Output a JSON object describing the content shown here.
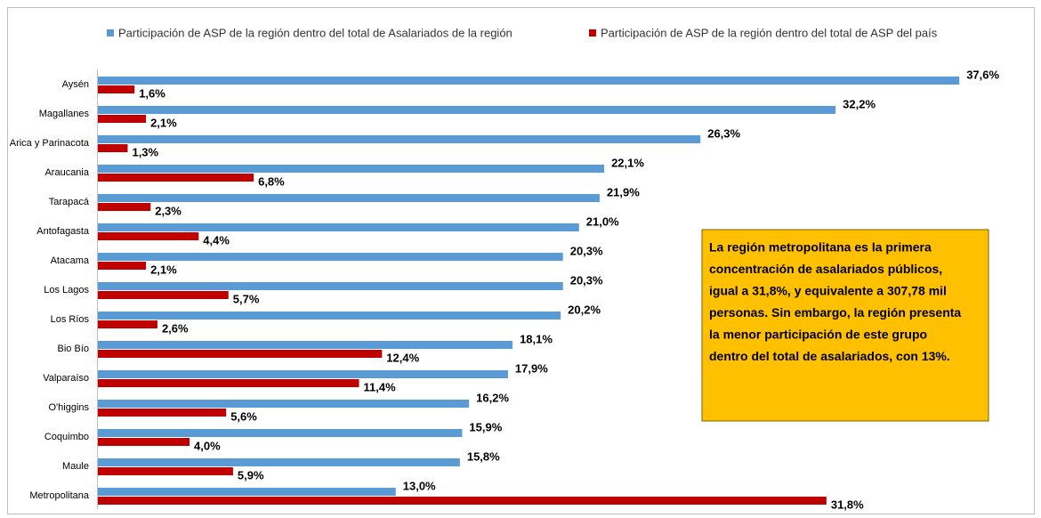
{
  "chart_data": {
    "type": "bar",
    "orientation": "horizontal",
    "categories": [
      "Aysén",
      "Magallanes",
      "Arica y Parinacota",
      "Araucania",
      "Tarapacá",
      "Antofagasta",
      "Atacama",
      "Los Lagos",
      "Los Ríos",
      "Bio Bío",
      "Valparaíso",
      "O'higgins",
      "Coquimbo",
      "Maule",
      "Metropolitana"
    ],
    "series": [
      {
        "name": "Participación de ASP de la región dentro del total de Asalariados de la región",
        "color": "#5B9BD5",
        "values": [
          37.6,
          32.2,
          26.3,
          22.1,
          21.9,
          21.0,
          20.3,
          20.3,
          20.2,
          18.1,
          17.9,
          16.2,
          15.9,
          15.8,
          13.0
        ],
        "value_labels": [
          "37,6%",
          "32,2%",
          "26,3%",
          "22,1%",
          "21,9%",
          "21,0%",
          "20,3%",
          "20,3%",
          "20,2%",
          "18,1%",
          "17,9%",
          "16,2%",
          "15,9%",
          "15,8%",
          "13,0%"
        ]
      },
      {
        "name": "Participación de ASP de la región dentro del total de ASP del país",
        "color": "#C00000",
        "values": [
          1.6,
          2.1,
          1.3,
          6.8,
          2.3,
          4.4,
          2.1,
          5.7,
          2.6,
          12.4,
          11.4,
          5.6,
          4.0,
          5.9,
          31.8
        ],
        "value_labels": [
          "1,6%",
          "2,1%",
          "1,3%",
          "6,8%",
          "2,3%",
          "4,4%",
          "2,1%",
          "5,7%",
          "2,6%",
          "12,4%",
          "11,4%",
          "5,6%",
          "4,0%",
          "5,9%",
          "31,8%"
        ]
      }
    ],
    "xlim": [
      0,
      40
    ],
    "annotation": [
      "La región metropolitana  es la primera",
      "concentración de asalariados públicos,",
      "igual a 31,8%, y equivalente a 307,78 mil",
      "personas. Sin embargo, la región presenta",
      "la menor participación de este grupo",
      "dentro del total de asalariados, con 13%."
    ]
  }
}
